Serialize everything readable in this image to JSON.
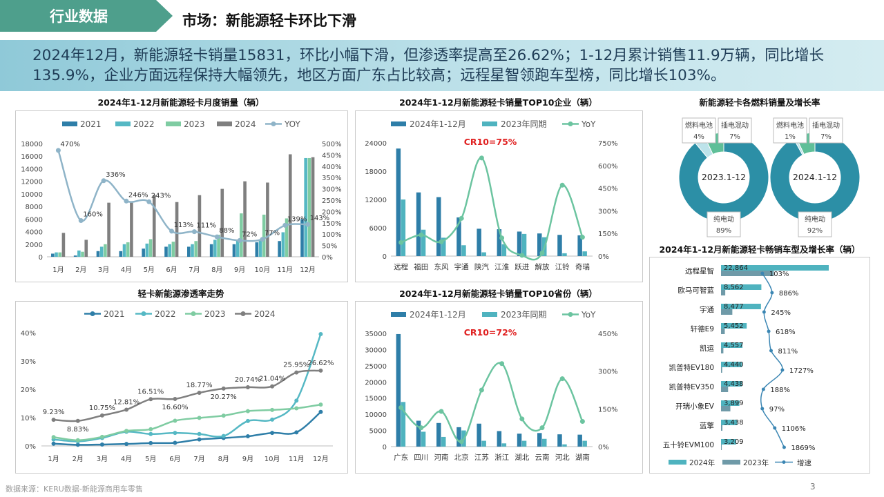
{
  "header": {
    "section_tag": "行业数据",
    "title": "市场：新能源轻卡环比下滑",
    "summary": "2024年12月，新能源轻卡销量15831，环比小幅下滑，但渗透率提高至26.62%；1-12月累计销售11.9万辆，同比增长135.9%，企业方面远程保持大幅领先，地区方面广东占比较高；远程星智领跑车型榜，同比增长103%。"
  },
  "footer": {
    "source": "数据来源：KERU数据-新能源商用车零售",
    "page": "3"
  },
  "colors": {
    "s2021": "#2e7ea8",
    "s2022": "#55b8c4",
    "s2023": "#7fcca2",
    "s2024": "#7f7f7f",
    "yoy": "#8fb4c8",
    "teal": "#4fb3bf",
    "green_line": "#6cc4a0",
    "red": "#e02020"
  },
  "chart_data": [
    {
      "type": "bar",
      "title": "2024年1-12月新能源轻卡月度销量（辆）",
      "categories": [
        "1月",
        "2月",
        "3月",
        "4月",
        "5月",
        "6月",
        "7月",
        "8月",
        "9月",
        "10月",
        "11月",
        "12月"
      ],
      "series": [
        {
          "name": "2021",
          "values": [
            500,
            200,
            900,
            900,
            1300,
            1600,
            1600,
            2000,
            2000,
            2300,
            2500,
            6000
          ]
        },
        {
          "name": "2022",
          "values": [
            700,
            1000,
            1600,
            2000,
            2100,
            2000,
            2000,
            2700,
            2600,
            2700,
            3900,
            15700
          ]
        },
        {
          "name": "2023",
          "values": [
            700,
            800,
            2000,
            2300,
            2800,
            2400,
            2500,
            3500,
            6900,
            6700,
            6100,
            15700
          ]
        },
        {
          "name": "2024",
          "values": [
            3800,
            2700,
            8600,
            8600,
            9800,
            8700,
            9800,
            10800,
            12000,
            11800,
            16300,
            15831
          ]
        }
      ],
      "line": {
        "name": "YOY",
        "values": [
          470,
          160,
          336,
          246,
          243,
          113,
          111,
          88,
          72,
          77,
          139,
          143
        ],
        "labels": [
          "470%",
          "160%",
          "336%",
          "246%",
          "243%",
          "113%",
          "111%",
          "88%",
          "72%",
          "77%",
          "139%",
          "143%"
        ]
      },
      "y_left": {
        "ticks": [
          "0",
          "2000",
          "4000",
          "6000",
          "8000",
          "10000",
          "12000",
          "14000",
          "16000",
          "18000"
        ],
        "max": 18000
      },
      "y_right": {
        "ticks": [
          "0%",
          "50%",
          "100%",
          "150%",
          "200%",
          "250%",
          "300%",
          "350%",
          "400%",
          "450%",
          "500%"
        ],
        "max": 500
      }
    },
    {
      "type": "bar",
      "title": "2024年1-12月新能源轻卡销量TOP10企业（辆）",
      "annotation": "CR10=75%",
      "categories": [
        "远程",
        "福田",
        "东风",
        "宇通",
        "陕汽",
        "江淮",
        "跃进",
        "解放",
        "江铃",
        "奇瑞"
      ],
      "series": [
        {
          "name": "2024年1-12月",
          "values": [
            22800,
            13500,
            12500,
            8200,
            5800,
            5700,
            5200,
            4800,
            4500,
            4400
          ]
        },
        {
          "name": "2023年同期",
          "values": [
            12000,
            5600,
            3900,
            2300,
            800,
            2500,
            4700,
            4000,
            600,
            1000
          ]
        }
      ],
      "line": {
        "name": "YoY",
        "values": [
          90,
          140,
          95,
          250,
          650,
          120,
          5,
          20,
          470,
          125
        ]
      },
      "y_left": {
        "ticks": [
          "0",
          "6000",
          "12000",
          "18000",
          "24000"
        ],
        "max": 24000
      },
      "y_right": {
        "ticks": [
          "0%",
          "150%",
          "300%",
          "450%",
          "600%",
          "750%"
        ],
        "max": 750
      }
    },
    {
      "type": "pie",
      "title": "新能源轻卡各燃料销量及增长率",
      "donuts": [
        {
          "center": "2023.1-12",
          "slices": [
            {
              "name": "纯电动",
              "pct": "89%",
              "value": 89,
              "color": "#2c8fa6"
            },
            {
              "name": "燃料电池",
              "pct": "4%",
              "value": 4,
              "color": "#bde3ea"
            },
            {
              "name": "插电混动",
              "pct": "7%",
              "value": 7,
              "color": "#5fbf98"
            }
          ]
        },
        {
          "center": "2024.1-12",
          "slices": [
            {
              "name": "纯电动",
              "pct": "92%",
              "value": 92,
              "color": "#2c8fa6"
            },
            {
              "name": "燃料电池",
              "pct": "1%",
              "value": 1,
              "color": "#bde3ea"
            },
            {
              "name": "插电混动",
              "pct": "7%",
              "value": 7,
              "color": "#5fbf98"
            }
          ]
        }
      ]
    },
    {
      "type": "line",
      "title": "轻卡新能源渗透率走势",
      "categories": [
        "1月",
        "2月",
        "3月",
        "4月",
        "5月",
        "6月",
        "7月",
        "8月",
        "9月",
        "10月",
        "11月",
        "12月"
      ],
      "series": [
        {
          "name": "2021",
          "values": [
            0.8,
            0.4,
            0.5,
            0.7,
            1.0,
            1.1,
            2.3,
            2.8,
            3.4,
            4.6,
            4.8,
            12.0
          ]
        },
        {
          "name": "2022",
          "values": [
            2.3,
            1.6,
            2.8,
            5.0,
            4.2,
            4.6,
            4.2,
            3.5,
            8.8,
            9.3,
            16.0,
            39.5
          ]
        },
        {
          "name": "2023",
          "values": [
            3.1,
            2.0,
            3.2,
            5.3,
            5.9,
            8.9,
            9.9,
            10.7,
            12.3,
            12.7,
            13.3,
            14.6
          ]
        },
        {
          "name": "2024",
          "values": [
            9.23,
            8.83,
            10.75,
            12.81,
            16.51,
            16.6,
            18.77,
            20.27,
            20.74,
            21.04,
            25.95,
            26.62
          ]
        }
      ],
      "labels_2024": [
        "9.23%",
        "8.83%",
        "10.75%",
        "12.81%",
        "16.51%",
        "16.60%",
        "18.77%",
        "20.27%",
        "20.74%",
        "21.04%",
        "25.95%",
        "26.62%"
      ],
      "y_ticks": [
        "0%",
        "10%",
        "20%",
        "30%",
        "40%"
      ],
      "y_max": 40
    },
    {
      "type": "bar",
      "title": "2024年1-12月新能源轻卡销量TOP10省份（辆）",
      "annotation": "CR10=72%",
      "categories": [
        "广东",
        "四川",
        "河南",
        "北京",
        "江苏",
        "浙江",
        "湖北",
        "云南",
        "河北",
        "湖南"
      ],
      "series": [
        {
          "name": "2024年1-12月",
          "values": [
            34800,
            8000,
            7300,
            6000,
            7100,
            4800,
            4000,
            4200,
            3800,
            3700
          ]
        },
        {
          "name": "2023年同期",
          "values": [
            13800,
            4600,
            3000,
            5000,
            1800,
            1000,
            1800,
            2400,
            700,
            1800
          ]
        }
      ],
      "line": {
        "name": "YoY",
        "values": [
          155,
          75,
          140,
          20,
          225,
          330,
          110,
          75,
          270,
          100
        ]
      },
      "y_left": {
        "ticks": [
          "0",
          "5000",
          "10000",
          "15000",
          "20000",
          "25000",
          "30000",
          "35000"
        ],
        "max": 35000
      },
      "y_right": {
        "ticks": [
          "0%",
          "150%",
          "300%",
          "450%"
        ],
        "max": 450
      }
    },
    {
      "type": "bar",
      "title": "2024年1-12月新能源轻卡畅销车型及增长率（辆）",
      "categories": [
        "远程星智",
        "欧马可智蓝",
        "宇通",
        "轩德E9",
        "凯运",
        "凯普特EV180",
        "凯普特EV350",
        "开瑞小象EV",
        "蓝擎",
        "五十铃EVM100"
      ],
      "series": [
        {
          "name": "2024年",
          "values": [
            22864,
            8562,
            8477,
            5452,
            4557,
            4440,
            4438,
            3899,
            3438,
            3209
          ],
          "labels": [
            "22,864",
            "8,562",
            "8,477",
            "5,452",
            "4,557",
            "4,440",
            "4,438",
            "3,899",
            "3,438",
            "3,209"
          ]
        },
        {
          "name": "2023年",
          "values": [
            11200,
            900,
            2400,
            800,
            500,
            250,
            1500,
            1980,
            300,
            160
          ]
        }
      ],
      "line": {
        "name": "增速",
        "values": [
          103,
          886,
          245,
          618,
          811,
          1727,
          188,
          97,
          1106,
          1869
        ],
        "labels": [
          "103%",
          "886%",
          "245%",
          "618%",
          "811%",
          "1727%",
          "188%",
          "97%",
          "1106%",
          "1869%"
        ]
      }
    }
  ]
}
